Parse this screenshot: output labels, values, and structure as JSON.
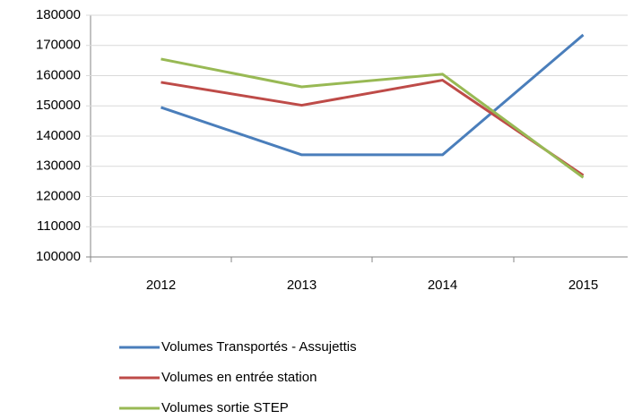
{
  "chart_data": {
    "type": "line",
    "categories": [
      "2012",
      "2013",
      "2014",
      "2015"
    ],
    "series": [
      {
        "name": "Volumes Transportés - Assujettis",
        "color": "#4a7ebb",
        "values": [
          149500,
          133800,
          133800,
          173500
        ]
      },
      {
        "name": "Volumes en entrée station",
        "color": "#be4b48",
        "values": [
          157800,
          150200,
          158500,
          127000
        ]
      },
      {
        "name": "Volumes sortie STEP",
        "color": "#98b954",
        "values": [
          165500,
          156300,
          160500,
          126300
        ]
      }
    ],
    "ylim": [
      100000,
      180000
    ],
    "yticks": [
      100000,
      110000,
      120000,
      130000,
      140000,
      150000,
      160000,
      170000,
      180000
    ],
    "grid": true,
    "legend": "bottom"
  }
}
